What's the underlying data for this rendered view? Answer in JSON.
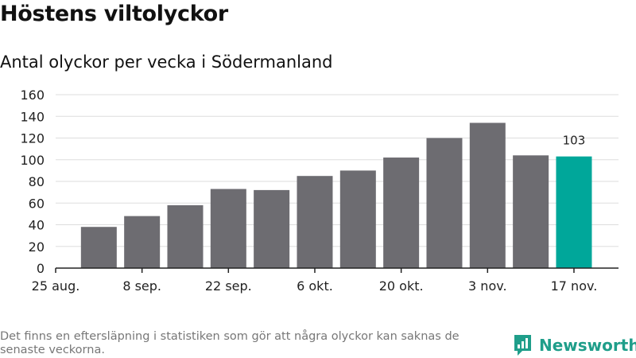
{
  "title": "Höstens viltolyckor",
  "subtitle": "Antal olyckor per vecka i Södermanland",
  "footnote": "Det finns en eftersläpning i statistiken som gör att några olyckor kan saknas de senaste veckorna.",
  "brand": {
    "name": "Newsworthy",
    "logo_icon": "newsworthy-logo-icon"
  },
  "colors": {
    "bar": "#6d6c71",
    "highlight": "#00a79a",
    "grid": "#dddddd",
    "axis": "#222222"
  },
  "chart_data": {
    "type": "bar",
    "title": "Höstens viltolyckor",
    "subtitle": "Antal olyckor per vecka i Södermanland",
    "xlabel": "",
    "ylabel": "",
    "ylim": [
      0,
      160
    ],
    "yticks": [
      0,
      20,
      40,
      60,
      80,
      100,
      120,
      140,
      160
    ],
    "x_tick_labels": [
      "25 aug.",
      "8 sep.",
      "22 sep.",
      "6 okt.",
      "20 okt.",
      "3 nov.",
      "17 nov."
    ],
    "x_tick_positions": [
      0,
      2,
      4,
      6,
      8,
      10,
      12
    ],
    "bar_positions": [
      1,
      2,
      3,
      4,
      5,
      6,
      7,
      8,
      9,
      10,
      11,
      12
    ],
    "values": [
      38,
      48,
      58,
      73,
      72,
      85,
      90,
      102,
      120,
      134,
      104,
      103
    ],
    "highlight_index": 11,
    "data_labels": [
      {
        "index": 11,
        "text": "103"
      }
    ],
    "grid": true
  }
}
